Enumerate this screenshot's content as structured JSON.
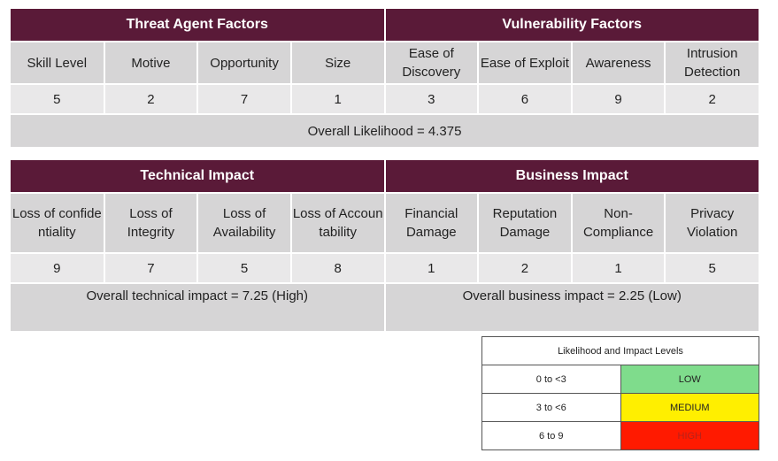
{
  "likelihood_table": {
    "threat_header": "Threat Agent Factors",
    "vuln_header": "Vulnerability Factors",
    "factors": [
      {
        "label": "Skill Level",
        "value": "5"
      },
      {
        "label": "Motive",
        "value": "2"
      },
      {
        "label": "Opportunity",
        "value": "7"
      },
      {
        "label": "Size",
        "value": "1"
      },
      {
        "label": "Ease of Discovery",
        "value": "3"
      },
      {
        "label": "Ease of Exploit",
        "value": "6"
      },
      {
        "label": "Awareness",
        "value": "9"
      },
      {
        "label": "Intrusion Detection",
        "value": "2"
      }
    ],
    "overall": "Overall Likelihood = 4.375"
  },
  "impact_table": {
    "technical_header": "Technical Impact",
    "business_header": "Business Impact",
    "factors": [
      {
        "label": "Loss of confidentiality",
        "value": "9"
      },
      {
        "label": "Loss of Integrity",
        "value": "7"
      },
      {
        "label": "Loss of Availability",
        "value": "5"
      },
      {
        "label": "Loss of Accountability",
        "value": "8"
      },
      {
        "label": "Financial Damage",
        "value": "1"
      },
      {
        "label": "Reputation Damage",
        "value": "2"
      },
      {
        "label": "Non-Compliance",
        "value": "1"
      },
      {
        "label": "Privacy Violation",
        "value": "5"
      }
    ],
    "overall_technical": "Overall technical impact = 7.25 (High)",
    "overall_business": "Overall business impact = 2.25 (Low)"
  },
  "levels_legend": {
    "title": "Likelihood and Impact Levels",
    "rows": [
      {
        "range": "0 to <3",
        "level": "LOW",
        "color": "#7fdc8c",
        "text_color": "#222222"
      },
      {
        "range": "3 to <6",
        "level": "MEDIUM",
        "color": "#ffef00",
        "text_color": "#222222"
      },
      {
        "range": "6 to 9",
        "level": "HIGH",
        "color": "#ff1a00",
        "text_color": "#b8221a"
      }
    ]
  },
  "colors": {
    "header": "#5a1a38",
    "label_bg": "#d6d5d6",
    "value_bg": "#e9e8e9"
  }
}
